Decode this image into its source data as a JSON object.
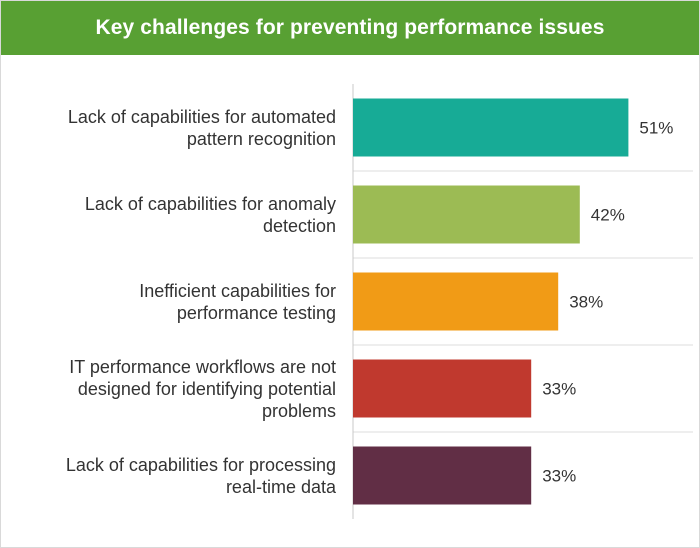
{
  "chart_data": {
    "type": "bar",
    "orientation": "horizontal",
    "title": "Key challenges for preventing performance issues",
    "categories": [
      "Lack of capabilities for automated pattern recognition",
      "Lack of capabilities for anomaly detection",
      "Inefficient capabilities for performance testing",
      "IT performance workflows are not designed for identifying potential problems",
      "Lack of capabilities for processing real-time data"
    ],
    "category_lines": [
      [
        "Lack of capabilities for automated",
        "pattern recognition"
      ],
      [
        "Lack of capabilities for anomaly",
        "detection"
      ],
      [
        "Inefficient capabilities for",
        "performance testing"
      ],
      [
        "IT performance workflows are not",
        "designed for identifying potential",
        "problems"
      ],
      [
        "Lack of capabilities for processing",
        "real-time data"
      ]
    ],
    "values": [
      51,
      42,
      38,
      33,
      33
    ],
    "value_labels": [
      "51%",
      "42%",
      "38%",
      "33%",
      "33%"
    ],
    "bar_colors": [
      "#17ab96",
      "#9cbb54",
      "#f19b16",
      "#c0392e",
      "#612e45"
    ],
    "xlim": [
      0,
      60
    ],
    "grid": true,
    "legend": "none"
  },
  "colors": {
    "header_bg": "#58a033",
    "header_text": "#ffffff",
    "label_text": "#333333",
    "gridline": "#dcdcdc",
    "axis": "#c8c8c8"
  }
}
